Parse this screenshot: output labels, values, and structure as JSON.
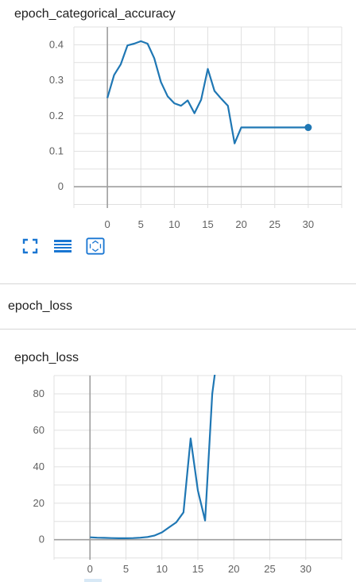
{
  "chart_data": [
    {
      "type": "line",
      "title": "epoch_categorical_accuracy",
      "color": "#1f77b4",
      "xlim": [
        -5,
        35
      ],
      "ylim": [
        -0.06,
        0.45
      ],
      "x_ticks": [
        0,
        5,
        10,
        15,
        20,
        25,
        30
      ],
      "y_ticks": [
        0,
        0.1,
        0.2,
        0.3,
        0.4
      ],
      "x_tick_labels": [
        "0",
        "5",
        "10",
        "15",
        "20",
        "25",
        "30"
      ],
      "y_tick_labels": [
        "0",
        "0.1",
        "0.2",
        "0.3",
        "0.4"
      ],
      "x_grid": [
        -5,
        0,
        5,
        10,
        15,
        20,
        25,
        30,
        35
      ],
      "y_grid": [
        -0.05,
        0,
        0.05,
        0.1,
        0.15,
        0.2,
        0.25,
        0.3,
        0.35,
        0.4,
        0.45
      ],
      "grid": true,
      "series": [
        {
          "x": [
            0,
            1,
            2,
            3,
            4,
            5,
            6,
            7,
            8,
            9,
            10,
            11,
            12,
            13,
            14,
            15,
            16,
            17,
            18,
            19,
            20,
            30
          ],
          "values": [
            0.25,
            0.315,
            0.345,
            0.398,
            0.403,
            0.41,
            0.403,
            0.362,
            0.295,
            0.255,
            0.235,
            0.228,
            0.243,
            0.207,
            0.245,
            0.332,
            0.27,
            0.248,
            0.228,
            0.122,
            0.167,
            0.167
          ]
        }
      ],
      "marker_x": 30
    },
    {
      "type": "line",
      "title": "epoch_loss",
      "color": "#1f77b4",
      "xlim": [
        -5,
        35
      ],
      "ylim": [
        -11,
        90
      ],
      "x_ticks": [
        0,
        5,
        10,
        15,
        20,
        25,
        30
      ],
      "y_ticks": [
        0,
        20,
        40,
        60,
        80
      ],
      "x_tick_labels": [
        "0",
        "5",
        "10",
        "15",
        "20",
        "25",
        "30"
      ],
      "y_tick_labels": [
        "0",
        "20",
        "40",
        "60",
        "80"
      ],
      "x_grid": [
        -5,
        0,
        5,
        10,
        15,
        20,
        25,
        30,
        35
      ],
      "y_grid": [
        -10,
        0,
        10,
        20,
        30,
        40,
        50,
        60,
        70,
        80,
        90
      ],
      "grid": true,
      "series": [
        {
          "x": [
            0,
            1,
            2,
            3,
            4,
            5,
            6,
            7,
            8,
            9,
            10,
            11,
            12,
            13,
            14,
            15,
            16,
            17,
            17.5
          ],
          "values": [
            1.3,
            1.1,
            1.0,
            0.9,
            0.8,
            0.8,
            0.9,
            1.1,
            1.5,
            2.3,
            4.0,
            6.8,
            9.5,
            15.0,
            55.5,
            27.0,
            10.5,
            80.0,
            95.0
          ]
        }
      ]
    }
  ],
  "section": {
    "title": "epoch_loss"
  },
  "toolbar": [
    {
      "name": "fullscreen-icon",
      "icon": "fullscreen"
    },
    {
      "name": "data-table-icon",
      "icon": "lines"
    },
    {
      "name": "fit-domain-icon",
      "icon": "fit-domain"
    }
  ]
}
